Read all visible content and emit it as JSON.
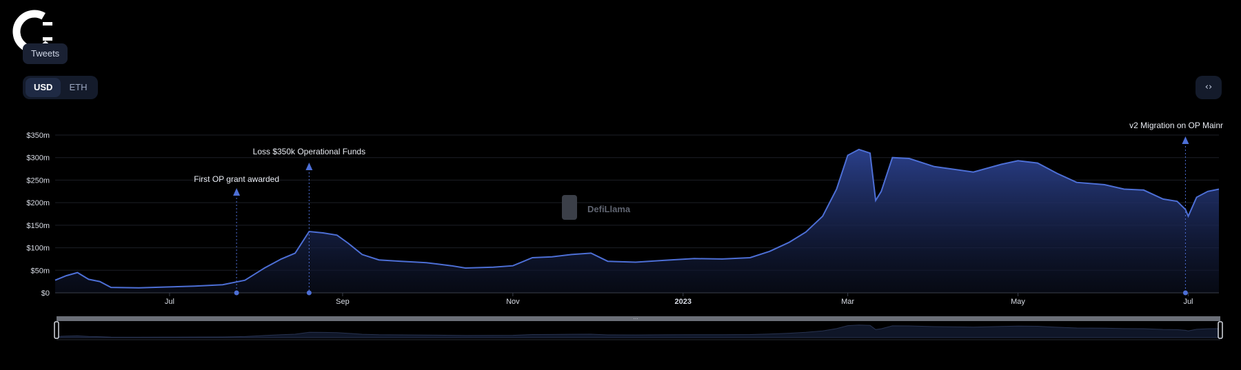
{
  "buttons": {
    "tweets": "Tweets",
    "usd": "USD",
    "eth": "ETH",
    "embed": "‹›"
  },
  "watermark": "DefiLlama",
  "colors": {
    "line": "#4d6fd6",
    "fill_top": "#2a3f8a",
    "fill_bottom": "#0b1020",
    "background": "#000000"
  },
  "chart_data": {
    "type": "area",
    "x_start": "2022-05-21",
    "x_end": "2023-07-12",
    "x_ticks": [
      {
        "date": "2022-07-01",
        "label": "Jul"
      },
      {
        "date": "2022-09-01",
        "label": "Sep"
      },
      {
        "date": "2022-11-01",
        "label": "Nov"
      },
      {
        "date": "2023-01-01",
        "label": "2023"
      },
      {
        "date": "2023-03-01",
        "label": "Mar"
      },
      {
        "date": "2023-05-01",
        "label": "May"
      },
      {
        "date": "2023-07-01",
        "label": "Jul"
      }
    ],
    "y_ticks": [
      {
        "value": 0,
        "label": "$0"
      },
      {
        "value": 50,
        "label": "$50m"
      },
      {
        "value": 100,
        "label": "$100m"
      },
      {
        "value": 150,
        "label": "$150m"
      },
      {
        "value": 200,
        "label": "$200m"
      },
      {
        "value": 250,
        "label": "$250m"
      },
      {
        "value": 300,
        "label": "$300m"
      },
      {
        "value": 350,
        "label": "$350m"
      }
    ],
    "ylim": [
      0,
      350
    ],
    "grid": true,
    "series": [
      {
        "points": [
          [
            "2022-05-21",
            28
          ],
          [
            "2022-05-25",
            38
          ],
          [
            "2022-05-29",
            45
          ],
          [
            "2022-06-02",
            30
          ],
          [
            "2022-06-06",
            25
          ],
          [
            "2022-06-10",
            12
          ],
          [
            "2022-06-20",
            11
          ],
          [
            "2022-06-30",
            13
          ],
          [
            "2022-07-10",
            15
          ],
          [
            "2022-07-20",
            18
          ],
          [
            "2022-07-28",
            28
          ],
          [
            "2022-08-04",
            55
          ],
          [
            "2022-08-10",
            75
          ],
          [
            "2022-08-15",
            88
          ],
          [
            "2022-08-20",
            136
          ],
          [
            "2022-08-25",
            133
          ],
          [
            "2022-08-30",
            128
          ],
          [
            "2022-09-03",
            110
          ],
          [
            "2022-09-08",
            85
          ],
          [
            "2022-09-14",
            73
          ],
          [
            "2022-09-22",
            70
          ],
          [
            "2022-10-01",
            67
          ],
          [
            "2022-10-10",
            60
          ],
          [
            "2022-10-15",
            55
          ],
          [
            "2022-10-25",
            57
          ],
          [
            "2022-11-01",
            60
          ],
          [
            "2022-11-08",
            78
          ],
          [
            "2022-11-15",
            80
          ],
          [
            "2022-11-22",
            85
          ],
          [
            "2022-11-29",
            88
          ],
          [
            "2022-12-05",
            70
          ],
          [
            "2022-12-15",
            68
          ],
          [
            "2022-12-25",
            72
          ],
          [
            "2023-01-05",
            76
          ],
          [
            "2023-01-15",
            75
          ],
          [
            "2023-01-25",
            78
          ],
          [
            "2023-02-01",
            92
          ],
          [
            "2023-02-08",
            112
          ],
          [
            "2023-02-14",
            135
          ],
          [
            "2023-02-20",
            170
          ],
          [
            "2023-02-25",
            230
          ],
          [
            "2023-03-01",
            305
          ],
          [
            "2023-03-05",
            318
          ],
          [
            "2023-03-09",
            310
          ],
          [
            "2023-03-11",
            205
          ],
          [
            "2023-03-13",
            225
          ],
          [
            "2023-03-17",
            300
          ],
          [
            "2023-03-23",
            298
          ],
          [
            "2023-04-01",
            280
          ],
          [
            "2023-04-15",
            268
          ],
          [
            "2023-04-25",
            285
          ],
          [
            "2023-05-01",
            293
          ],
          [
            "2023-05-08",
            288
          ],
          [
            "2023-05-15",
            265
          ],
          [
            "2023-05-22",
            245
          ],
          [
            "2023-06-01",
            240
          ],
          [
            "2023-06-08",
            230
          ],
          [
            "2023-06-15",
            228
          ],
          [
            "2023-06-22",
            208
          ],
          [
            "2023-06-27",
            203
          ],
          [
            "2023-06-30",
            185
          ],
          [
            "2023-07-01",
            170
          ],
          [
            "2023-07-04",
            212
          ],
          [
            "2023-07-08",
            225
          ],
          [
            "2023-07-12",
            230
          ]
        ]
      }
    ],
    "annotations": [
      {
        "date": "2022-07-25",
        "label": "First OP grant awarded"
      },
      {
        "date": "2022-08-20",
        "label": "Loss $350k Operational Funds"
      },
      {
        "date": "2023-06-30",
        "label": "v2 Migration on OP Mainr"
      }
    ]
  }
}
